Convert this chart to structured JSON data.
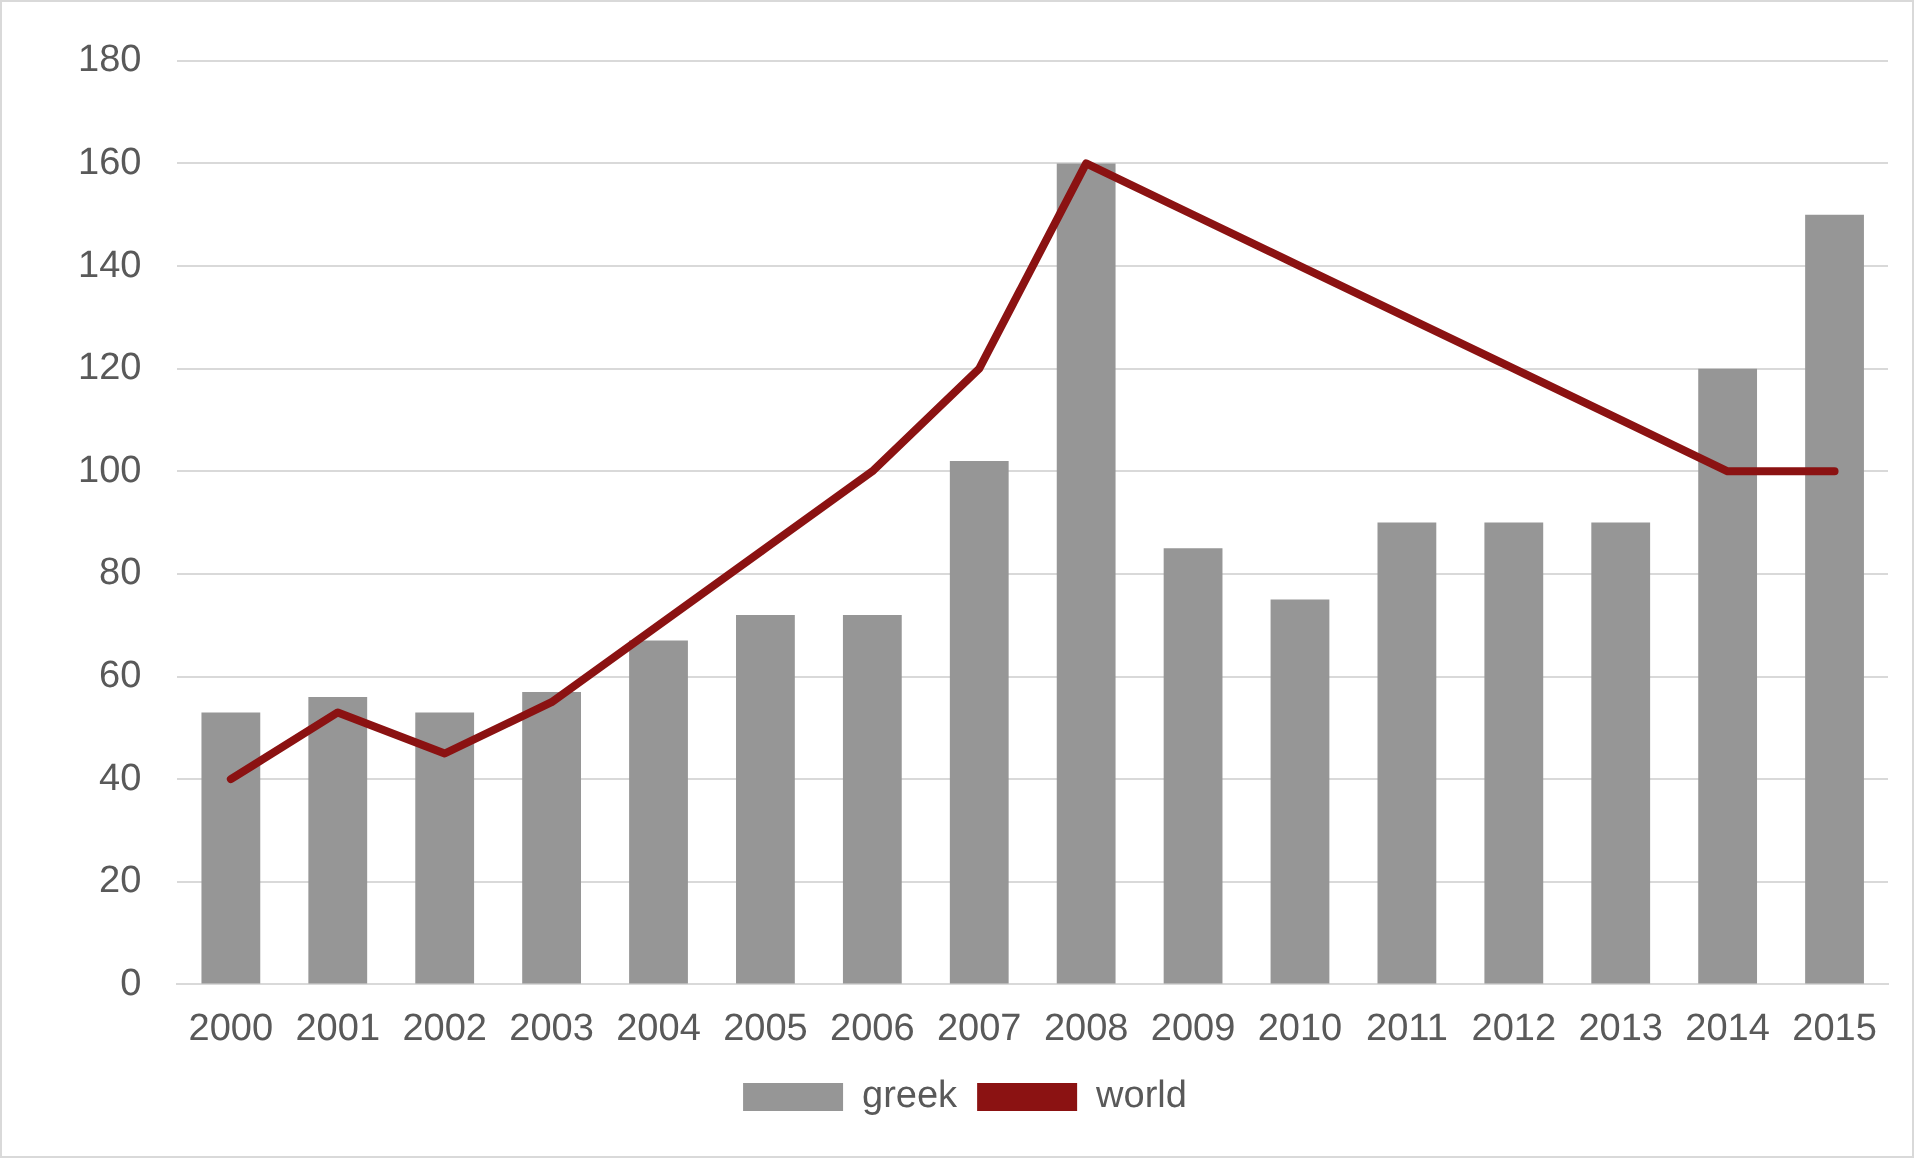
{
  "chart_data": {
    "type": "bar",
    "categories": [
      "2000",
      "2001",
      "2002",
      "2003",
      "2004",
      "2005",
      "2006",
      "2007",
      "2008",
      "2009",
      "2010",
      "2011",
      "2012",
      "2013",
      "2014",
      "2015"
    ],
    "series": [
      {
        "name": "greek",
        "color": "#969696",
        "values": [
          53,
          56,
          53,
          57,
          67,
          72,
          72,
          102,
          160,
          85,
          75,
          90,
          90,
          90,
          120,
          150
        ]
      },
      {
        "name": "world",
        "type": "line",
        "color": "#8b1212",
        "values": [
          40,
          53,
          45,
          55,
          70,
          85,
          100,
          120,
          160,
          150,
          140,
          130,
          120,
          110,
          100,
          100
        ]
      }
    ],
    "ylim": [
      0,
      180
    ],
    "yticks": [
      0,
      20,
      40,
      60,
      80,
      100,
      120,
      140,
      160,
      180
    ],
    "grid": "y",
    "legend": "bottom",
    "marker": "none"
  }
}
